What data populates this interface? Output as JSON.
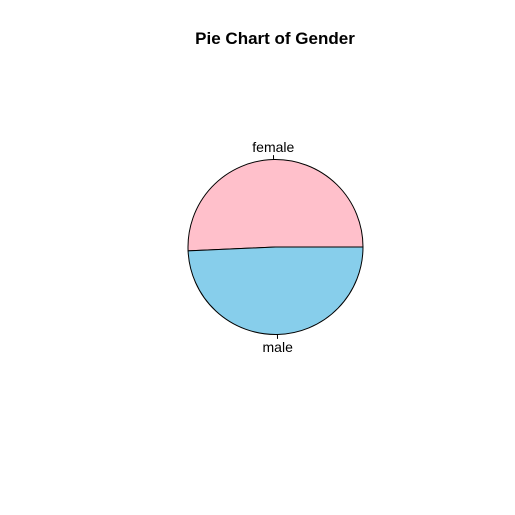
{
  "chart_data": {
    "type": "pie",
    "title": "Pie Chart of Gender",
    "categories": [
      "female",
      "male"
    ],
    "values": [
      50.7,
      49.3
    ],
    "colors": [
      "#FFC0CB",
      "#87CEEB"
    ],
    "border_color": "#000000",
    "start_angle_deg": 0,
    "direction": "counterclockwise",
    "legend": "none",
    "grid": false
  }
}
